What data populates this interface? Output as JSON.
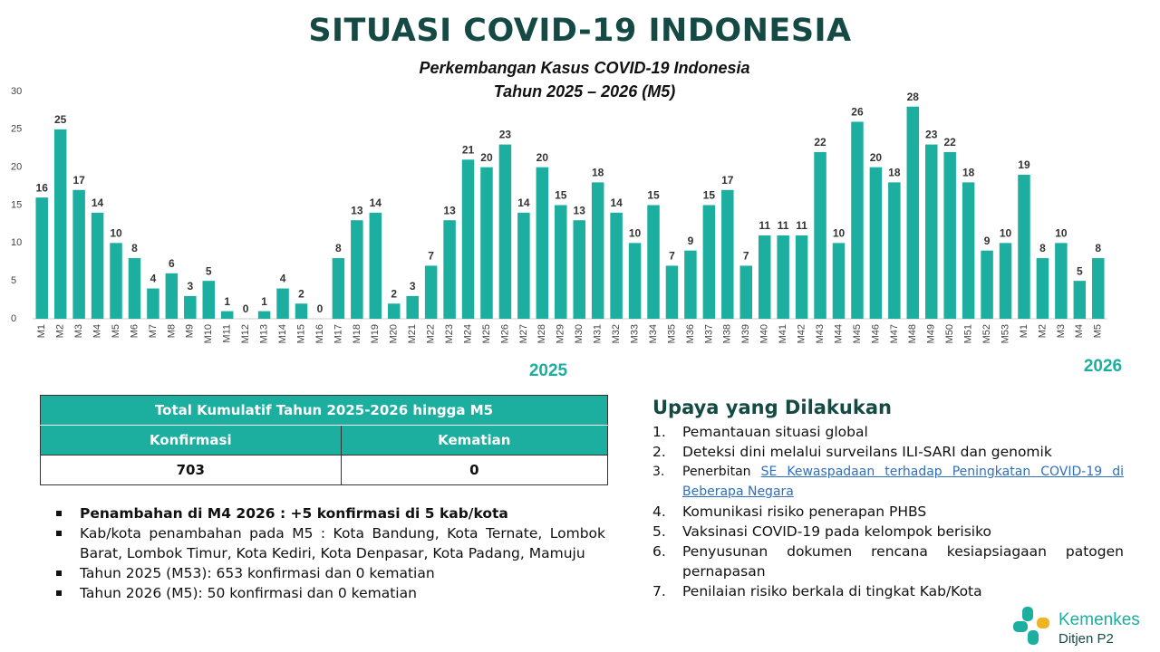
{
  "title": "SITUASI COVID-19 INDONESIA",
  "chart_data": {
    "type": "bar",
    "title": "Perkembangan Kasus COVID-19 Indonesia",
    "subtitle": "Tahun 2025 – 2026 (M5)",
    "categories": [
      "M1",
      "M2",
      "M3",
      "M4",
      "M5",
      "M6",
      "M7",
      "M8",
      "M9",
      "M10",
      "M11",
      "M12",
      "M13",
      "M14",
      "M15",
      "M16",
      "M17",
      "M18",
      "M19",
      "M20",
      "M21",
      "M22",
      "M23",
      "M24",
      "M25",
      "M26",
      "M27",
      "M28",
      "M29",
      "M30",
      "M31",
      "M32",
      "M33",
      "M34",
      "M35",
      "M36",
      "M37",
      "M38",
      "M39",
      "M40",
      "M41",
      "M42",
      "M43",
      "M44",
      "M45",
      "M46",
      "M47",
      "M48",
      "M49",
      "M50",
      "M51",
      "M52",
      "M53",
      "M1",
      "M2",
      "M3",
      "M4",
      "M5"
    ],
    "values": [
      16,
      25,
      17,
      14,
      10,
      8,
      4,
      6,
      3,
      5,
      1,
      0,
      1,
      4,
      2,
      0,
      8,
      13,
      14,
      2,
      3,
      7,
      13,
      21,
      20,
      23,
      14,
      20,
      15,
      13,
      18,
      14,
      10,
      15,
      7,
      9,
      15,
      17,
      7,
      11,
      11,
      11,
      22,
      10,
      26,
      20,
      18,
      28,
      23,
      22,
      18,
      9,
      10,
      19,
      8,
      10,
      5,
      8
    ],
    "color": "#1cae9f",
    "ylim": [
      0,
      30
    ],
    "yticks": [
      0,
      5,
      10,
      15,
      20,
      25,
      30
    ],
    "grid": false,
    "year_labels": [
      "2025",
      "2026"
    ]
  },
  "table": {
    "title": "Total Kumulatif Tahun 2025-2026 hingga M5",
    "headers": [
      "Konfirmasi",
      "Kematian"
    ],
    "rows": [
      [
        703,
        0
      ]
    ]
  },
  "notes": [
    "Penambahan di M4 2026 : +5 konfirmasi di 5 kab/kota",
    "Kab/kota penambahan pada M5 : Kota Bandung, Kota Ternate, Lombok Barat, Lombok Timur, Kota Kediri, Kota Denpasar, Kota Padang, Mamuju",
    "Tahun 2025 (M53): 653 konfirmasi dan 0 kematian",
    "Tahun 2026 (M5): 50 konfirmasi dan 0 kematian"
  ],
  "actions": {
    "title": "Upaya yang Dilakukan",
    "items": [
      {
        "number": "1.",
        "text": "Pemantauan situasi global"
      },
      {
        "number": "2.",
        "text": "Deteksi dini melalui surveilans ILI-SARI dan genomik"
      },
      {
        "number": "3.",
        "text": "Penerbitan",
        "link": "SE Kewaspadaan terhadap Peningkatan COVID-19 di Beberapa Negara"
      },
      {
        "number": "4.",
        "text": "Komunikasi risiko penerapan PHBS"
      },
      {
        "number": "5.",
        "text": "Vaksinasi COVID-19 pada kelompok berisiko"
      },
      {
        "number": "6.",
        "text": "Penyusunan dokumen rencana kesiapsiagaan patogen pernapasan"
      },
      {
        "number": "7.",
        "text": "Penilaian risiko berkala di tingkat Kab/Kota"
      }
    ]
  },
  "logo": {
    "name": "Kemenkes",
    "sub": "Ditjen P2"
  }
}
